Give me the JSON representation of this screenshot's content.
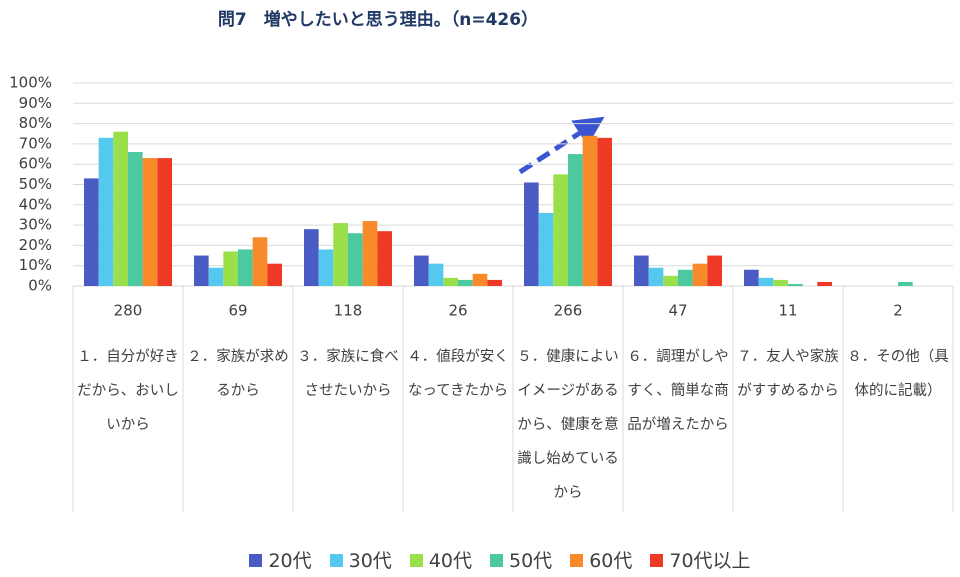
{
  "chart_data": {
    "type": "bar",
    "title": "問7　増やしたいと思う理由。（n=426）",
    "categories": [
      "１．自分が好きだから、おいしいから",
      "２．家族が求めるから",
      "３．家族に食べさせたいから",
      "４．値段が安くなってきたから",
      "５．健康によいイメージがあるから、健康を意識し始めているから",
      "６．調理がしやすく、簡単な商品が増えたから",
      "７．友人や家族がすすめるから",
      "８．その他（具体的に記載）"
    ],
    "category_counts": [
      280,
      69,
      118,
      26,
      266,
      47,
      11,
      2
    ],
    "series": [
      {
        "name": "20代",
        "color": "#4a5bc4",
        "values": [
          53,
          15,
          28,
          15,
          51,
          15,
          8,
          0
        ]
      },
      {
        "name": "30代",
        "color": "#55c8f0",
        "values": [
          73,
          9,
          18,
          11,
          36,
          9,
          4,
          0
        ]
      },
      {
        "name": "40代",
        "color": "#99e04a",
        "values": [
          76,
          17,
          31,
          4,
          55,
          5,
          3,
          0
        ]
      },
      {
        "name": "50代",
        "color": "#4dc9a0",
        "values": [
          66,
          18,
          26,
          3,
          65,
          8,
          1,
          2
        ]
      },
      {
        "name": "60代",
        "color": "#f88a2a",
        "values": [
          63,
          24,
          32,
          6,
          74,
          11,
          0,
          0
        ]
      },
      {
        "name": "70代以上",
        "color": "#ee3a24",
        "values": [
          63,
          11,
          27,
          3,
          73,
          15,
          2,
          0
        ]
      }
    ],
    "ylim": [
      0,
      100
    ],
    "yticks": [
      {
        "value": 0,
        "label": "0%"
      },
      {
        "value": 10,
        "label": "10%"
      },
      {
        "value": 20,
        "label": "20%"
      },
      {
        "value": 30,
        "label": "30%"
      },
      {
        "value": 40,
        "label": "40%"
      },
      {
        "value": 50,
        "label": "50%"
      },
      {
        "value": 60,
        "label": "60%"
      },
      {
        "value": 70,
        "label": "70%"
      },
      {
        "value": 80,
        "label": "80%"
      },
      {
        "value": 90,
        "label": "90%"
      },
      {
        "value": 100,
        "label": "100%"
      }
    ],
    "grid": true
  }
}
